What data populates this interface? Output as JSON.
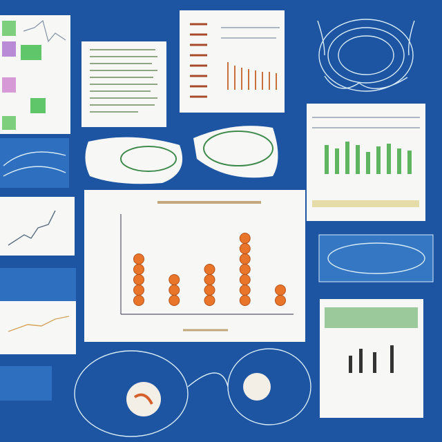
{
  "panels": {
    "center_chart": {
      "type": "dot-stack",
      "values": [
        5,
        3,
        4,
        7,
        2
      ],
      "color": "#e8752a"
    }
  }
}
